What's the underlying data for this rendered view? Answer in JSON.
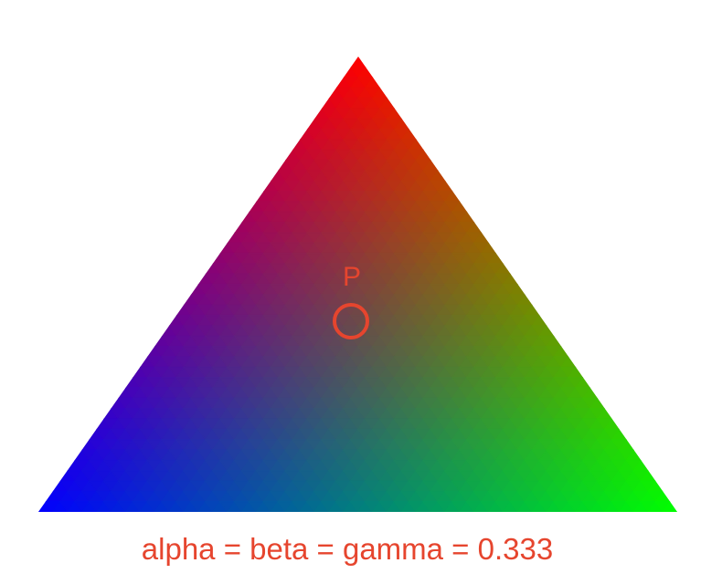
{
  "diagram": {
    "vertices": [
      {
        "name": "top",
        "color": "#ff0000"
      },
      {
        "name": "bottom-left",
        "color": "#0000ff"
      },
      {
        "name": "bottom-right",
        "color": "#00ff00"
      }
    ],
    "point": {
      "label": "P",
      "weights": {
        "alpha": 0.333,
        "beta": 0.333,
        "gamma": 0.333
      }
    },
    "caption": "alpha = beta = gamma = 0.333",
    "accent_color": "#e6452e"
  }
}
